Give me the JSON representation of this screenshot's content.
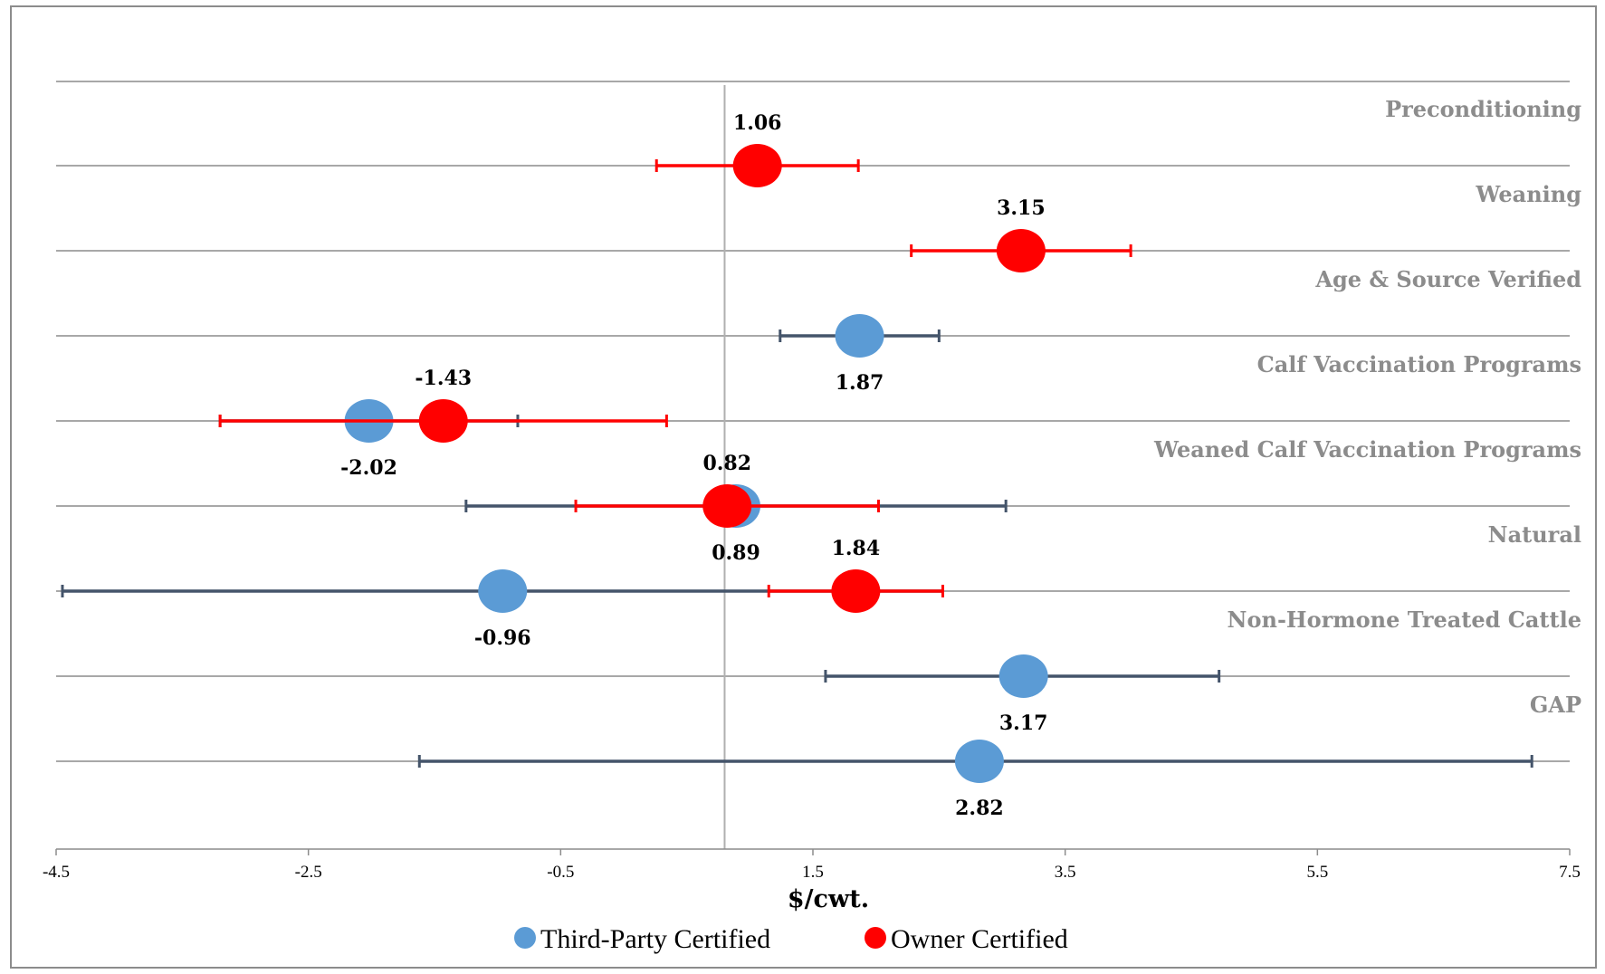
{
  "chart_data": {
    "type": "scatter",
    "xlabel": "$/cwt.",
    "xlim": [
      -4.5,
      7.5
    ],
    "xticks": [
      "-4.5",
      "-2.5",
      "-0.5",
      "1.5",
      "3.5",
      "5.5",
      "7.5"
    ],
    "legend": "bottom",
    "grid": "horizontal",
    "reference_x": 0.8,
    "categories": [
      "Preconditioning",
      "Weaning",
      "Age & Source Verified",
      "Calf Vaccination Programs",
      "Weaned Calf Vaccination Programs",
      "Natural",
      "Non-Hormone Treated Cattle",
      "GAP"
    ],
    "series": [
      {
        "name": "Third-Party Certified",
        "color": "#5b9bd5",
        "errcolor": "#44546a",
        "points": [
          {
            "category": "Age & Source Verified",
            "value": 1.87,
            "low": 1.24,
            "high": 2.5,
            "label": "1.87",
            "label_pos": "below"
          },
          {
            "category": "Calf Vaccination Programs",
            "value": -2.02,
            "low": -3.2,
            "high": -0.84,
            "label": "-2.02",
            "label_pos": "below"
          },
          {
            "category": "Weaned Calf Vaccination Programs",
            "value": 0.89,
            "low": -1.25,
            "high": 3.03,
            "label": "0.89",
            "label_pos": "below"
          },
          {
            "category": "Natural",
            "value": -0.96,
            "low": -4.45,
            "high": 2.53,
            "label": "-0.96",
            "label_pos": "below"
          },
          {
            "category": "Non-Hormone Treated Cattle",
            "value": 3.17,
            "low": 1.6,
            "high": 4.72,
            "label": "3.17",
            "label_pos": "below"
          },
          {
            "category": "GAP",
            "value": 2.82,
            "low": -1.62,
            "high": 7.2,
            "label": "2.82",
            "label_pos": "below"
          }
        ]
      },
      {
        "name": "Owner Certified",
        "color": "#ff0000",
        "errcolor": "#ff0000",
        "points": [
          {
            "category": "Preconditioning",
            "value": 1.06,
            "low": 0.26,
            "high": 1.86,
            "label": "1.06",
            "label_pos": "above"
          },
          {
            "category": "Weaning",
            "value": 3.15,
            "low": 2.28,
            "high": 4.02,
            "label": "3.15",
            "label_pos": "above"
          },
          {
            "category": "Calf Vaccination Programs",
            "value": -1.43,
            "low": -3.2,
            "high": 0.34,
            "label": "-1.43",
            "label_pos": "above"
          },
          {
            "category": "Weaned Calf Vaccination Programs",
            "value": 0.82,
            "low": -0.38,
            "high": 2.02,
            "label": "0.82",
            "label_pos": "above"
          },
          {
            "category": "Natural",
            "value": 1.84,
            "low": 1.15,
            "high": 2.53,
            "label": "1.84",
            "label_pos": "above"
          }
        ]
      }
    ]
  }
}
